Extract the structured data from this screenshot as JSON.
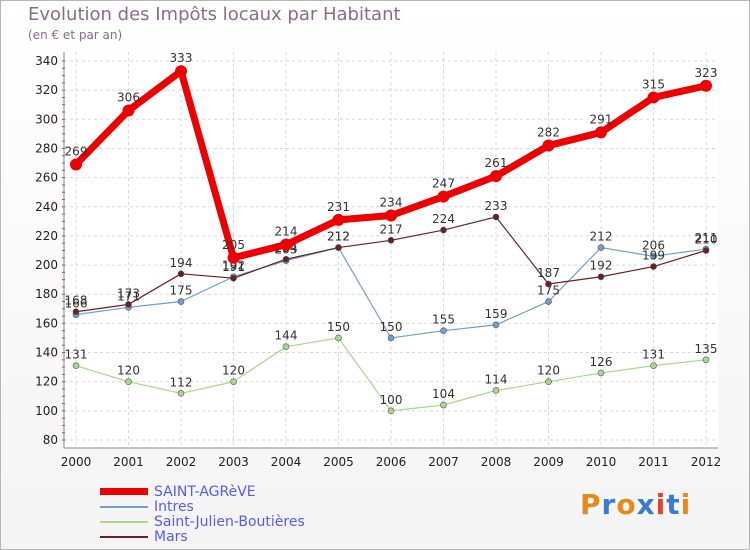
{
  "header": {
    "title": "Evolution des Impôts locaux par Habitant",
    "subtitle": "(en € et par an)"
  },
  "logo": {
    "text": "Proxiti",
    "colors": [
      "#e88a1a",
      "#3a7bd5",
      "#e88a1a",
      "#3a7bd5",
      "#e8402a",
      "#3a7bd5",
      "#e88a1a"
    ]
  },
  "chart_data": {
    "type": "line",
    "title": "Evolution des Impôts locaux par Habitant",
    "ylabel": "(en € et par an)",
    "xlabel": "",
    "ylim": [
      80,
      340
    ],
    "yticks": [
      80,
      100,
      120,
      140,
      160,
      180,
      200,
      220,
      240,
      260,
      280,
      300,
      320,
      340
    ],
    "categories": [
      "2000",
      "2001",
      "2002",
      "2003",
      "2004",
      "2005",
      "2006",
      "2007",
      "2008",
      "2009",
      "2010",
      "2011",
      "2012"
    ],
    "grid": true,
    "legend_position": "bottom-left",
    "series": [
      {
        "name": "SAINT-AGRèVE",
        "color": "#ee0000",
        "width": "thick",
        "values": [
          269,
          306,
          333,
          205,
          214,
          231,
          234,
          247,
          261,
          282,
          291,
          315,
          323
        ],
        "labels": [
          "269",
          "306",
          "333",
          "205",
          "214",
          "231",
          "234",
          "247",
          "261",
          "282",
          "291",
          "315",
          "323"
        ]
      },
      {
        "name": "Intres",
        "color": "#6fa0cf",
        "width": "thin",
        "values": [
          166,
          171,
          175,
          192,
          203,
          212,
          150,
          155,
          159,
          175,
          212,
          206,
          211
        ],
        "labels": [
          "166",
          "171",
          "175",
          "192",
          "203",
          "212",
          "150",
          "155",
          "159",
          "175",
          "212",
          "206",
          "211"
        ]
      },
      {
        "name": "Saint-Julien-Boutières",
        "color": "#a8d88a",
        "width": "thin",
        "values": [
          131,
          120,
          112,
          120,
          144,
          150,
          100,
          104,
          114,
          120,
          126,
          131,
          135
        ],
        "labels": [
          "131",
          "120",
          "112",
          "120",
          "144",
          "150",
          "100",
          "104",
          "114",
          "120",
          "126",
          "131",
          "135"
        ]
      },
      {
        "name": "Mars",
        "color": "#6a2020",
        "width": "thin",
        "values": [
          168,
          173,
          194,
          191,
          204,
          212,
          217,
          224,
          233,
          187,
          192,
          199,
          210
        ],
        "labels": [
          "168",
          "173",
          "194",
          "191",
          "204",
          "212",
          "217",
          "224",
          "233",
          "187",
          "192",
          "199",
          "210"
        ]
      }
    ]
  }
}
